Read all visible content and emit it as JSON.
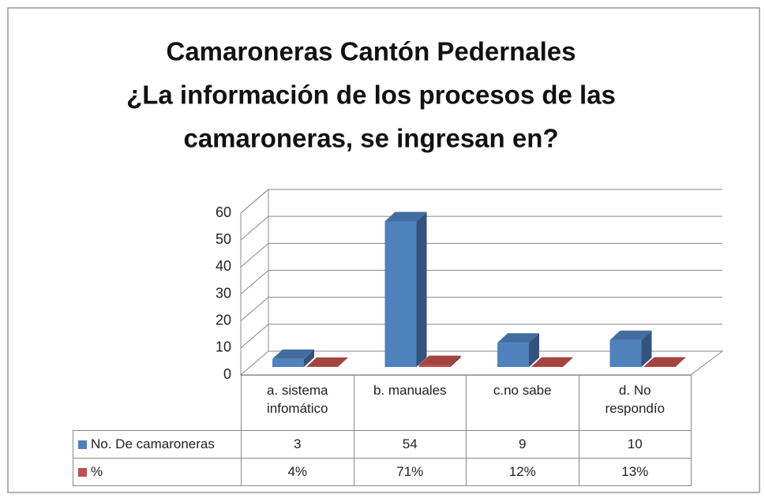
{
  "chart_data": {
    "type": "bar3d",
    "title": [
      "Camaroneras Cantón Pedernales",
      "¿La información de los procesos de las",
      "camaroneras, se ingresan  en?"
    ],
    "categories": [
      "a. sistema infomático",
      "b. manuales",
      "c.no sabe",
      "d. No respondío"
    ],
    "series": [
      {
        "name": "No. De camaroneras",
        "color": "#4f81bd",
        "values": [
          3,
          54,
          9,
          10
        ]
      },
      {
        "name": "%",
        "color": "#c0504d",
        "values": [
          0.04,
          0.71,
          0.12,
          0.13
        ],
        "value_labels": [
          "4%",
          "71%",
          "12%",
          "13%"
        ]
      }
    ],
    "ylim": [
      0,
      60
    ],
    "yticks": [
      0,
      10,
      20,
      30,
      40,
      50,
      60
    ],
    "grid": true,
    "data_table": true
  }
}
